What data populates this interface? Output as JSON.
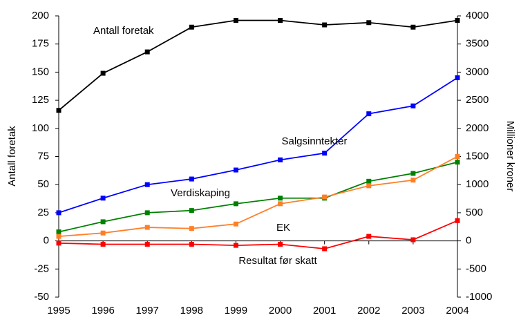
{
  "chart_data": {
    "type": "line",
    "y_label": "Antall foretak",
    "y2_label": "Millioner kroner",
    "xlim": [
      1995,
      2004
    ],
    "xticks": [
      1995,
      1996,
      1997,
      1998,
      1999,
      2000,
      2001,
      2002,
      2003,
      2004
    ],
    "ylim": [
      -50,
      200
    ],
    "yticks": [
      -50,
      -25,
      0,
      25,
      50,
      75,
      100,
      125,
      150,
      175,
      200
    ],
    "y2lim": [
      -1000,
      4000
    ],
    "y2ticks": [
      -1000,
      -500,
      0,
      500,
      1000,
      1500,
      2000,
      2500,
      3000,
      3500,
      4000
    ],
    "x": [
      1995,
      1996,
      1997,
      1998,
      1999,
      2000,
      2001,
      2002,
      2003,
      2004
    ],
    "series": [
      {
        "name": "Antall foretak",
        "color": "#000000",
        "values": [
          116,
          149,
          168,
          190,
          196,
          196,
          192,
          194,
          190,
          196
        ]
      },
      {
        "name": "Salgsinntekter",
        "color": "#0000ff",
        "axis": "y2",
        "values": [
          500,
          760,
          1000,
          1100,
          1260,
          1440,
          1560,
          2260,
          2400,
          2900
        ]
      },
      {
        "name": "Verdiskaping",
        "color": "#008000",
        "axis": "y2",
        "values": [
          160,
          340,
          500,
          540,
          660,
          760,
          760,
          1060,
          1200,
          1400
        ]
      },
      {
        "name": "EK",
        "color": "#ff7f27",
        "axis": "y2",
        "values": [
          80,
          140,
          240,
          220,
          300,
          660,
          780,
          980,
          1080,
          1500
        ]
      },
      {
        "name": "Resultat før skatt",
        "color": "#ff0000",
        "axis": "y2",
        "values": [
          -40,
          -60,
          -60,
          -60,
          -80,
          -60,
          -140,
          80,
          20,
          360
        ]
      }
    ]
  }
}
